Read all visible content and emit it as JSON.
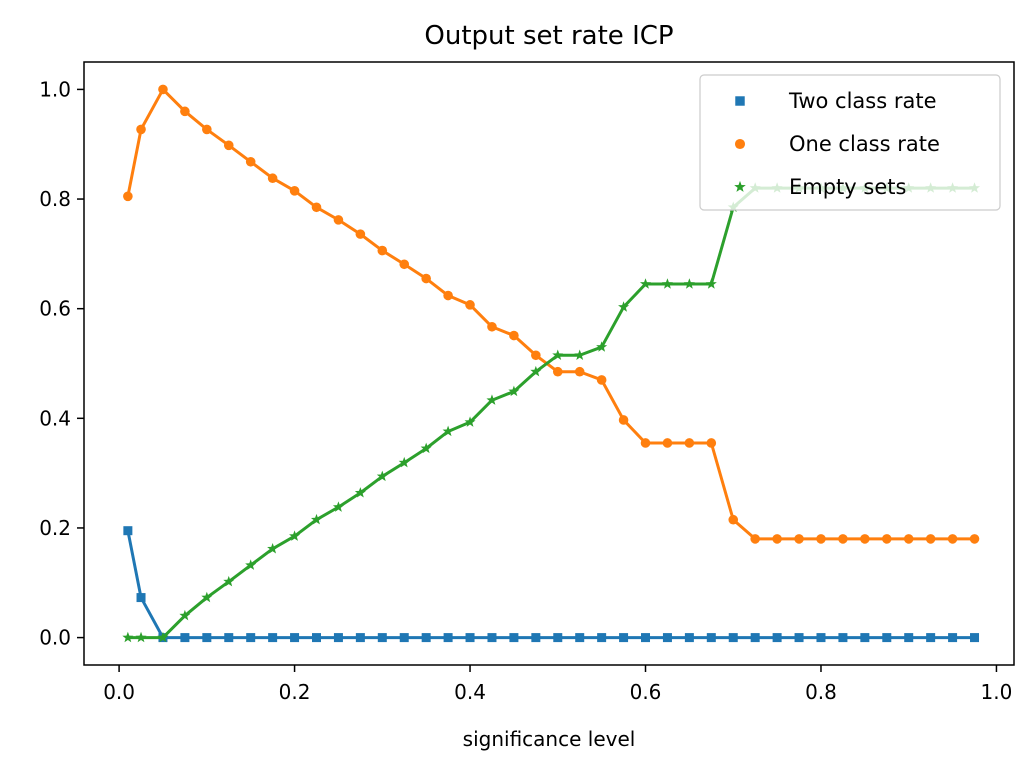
{
  "chart_data": {
    "type": "line",
    "title": "Output set rate ICP",
    "xlabel": "significance level",
    "ylabel": "",
    "xlim": [
      -0.04,
      1.02
    ],
    "ylim": [
      -0.05,
      1.05
    ],
    "xticks": [
      0.0,
      0.2,
      0.4,
      0.6,
      0.8,
      1.0
    ],
    "xtick_labels": [
      "0.0",
      "0.2",
      "0.4",
      "0.6",
      "0.8",
      "1.0"
    ],
    "yticks": [
      0.0,
      0.2,
      0.4,
      0.6,
      0.8,
      1.0
    ],
    "ytick_labels": [
      "0.0",
      "0.2",
      "0.4",
      "0.6",
      "0.8",
      "1.0"
    ],
    "grid": false,
    "legend_position": "top-right",
    "x": [
      0.01,
      0.025,
      0.05,
      0.075,
      0.1,
      0.125,
      0.15,
      0.175,
      0.2,
      0.225,
      0.25,
      0.275,
      0.3,
      0.325,
      0.35,
      0.375,
      0.4,
      0.425,
      0.45,
      0.475,
      0.5,
      0.525,
      0.55,
      0.575,
      0.6,
      0.625,
      0.65,
      0.675,
      0.7,
      0.725,
      0.75,
      0.775,
      0.8,
      0.825,
      0.85,
      0.875,
      0.9,
      0.925,
      0.95,
      0.975
    ],
    "series": [
      {
        "name": "Two class rate",
        "color": "#1f77b4",
        "marker": "square",
        "values": [
          0.195,
          0.073,
          0.0,
          0.0,
          0.0,
          0.0,
          0.0,
          0.0,
          0.0,
          0.0,
          0.0,
          0.0,
          0.0,
          0.0,
          0.0,
          0.0,
          0.0,
          0.0,
          0.0,
          0.0,
          0.0,
          0.0,
          0.0,
          0.0,
          0.0,
          0.0,
          0.0,
          0.0,
          0.0,
          0.0,
          0.0,
          0.0,
          0.0,
          0.0,
          0.0,
          0.0,
          0.0,
          0.0,
          0.0,
          0.0
        ]
      },
      {
        "name": "One class rate",
        "color": "#ff7f0e",
        "marker": "circle",
        "values": [
          0.805,
          0.927,
          1.0,
          0.96,
          0.927,
          0.898,
          0.868,
          0.838,
          0.815,
          0.785,
          0.762,
          0.736,
          0.706,
          0.681,
          0.655,
          0.624,
          0.607,
          0.567,
          0.551,
          0.515,
          0.485,
          0.485,
          0.47,
          0.397,
          0.355,
          0.355,
          0.355,
          0.355,
          0.215,
          0.18,
          0.18,
          0.18,
          0.18,
          0.18,
          0.18,
          0.18,
          0.18,
          0.18,
          0.18,
          0.18
        ]
      },
      {
        "name": "Empty sets",
        "color": "#2ca02c",
        "marker": "star",
        "values": [
          0.0,
          0.0,
          0.0,
          0.04,
          0.073,
          0.102,
          0.132,
          0.162,
          0.185,
          0.215,
          0.238,
          0.264,
          0.294,
          0.319,
          0.345,
          0.376,
          0.393,
          0.433,
          0.449,
          0.485,
          0.515,
          0.515,
          0.53,
          0.603,
          0.645,
          0.645,
          0.645,
          0.645,
          0.785,
          0.82,
          0.82,
          0.82,
          0.82,
          0.82,
          0.82,
          0.82,
          0.82,
          0.82,
          0.82,
          0.82
        ]
      }
    ]
  }
}
